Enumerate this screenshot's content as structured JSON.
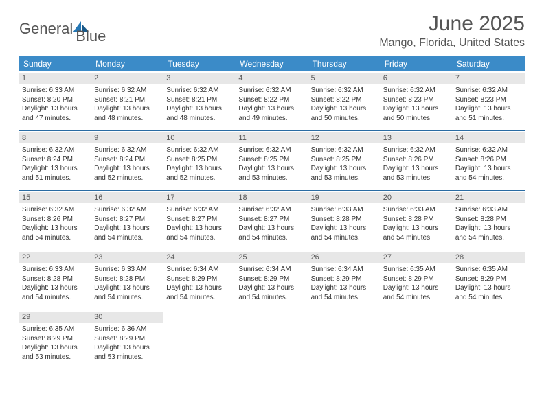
{
  "brand": {
    "word1": "General",
    "word2": "Blue"
  },
  "header": {
    "month_year": "June 2025",
    "location": "Mango, Florida, United States"
  },
  "colors": {
    "header_bg": "#3b8bc8",
    "header_text": "#ffffff",
    "daynum_bg": "#e7e7e7",
    "daynum_text": "#555555",
    "row_border": "#2a6ca3",
    "body_text": "#333333",
    "title_text": "#555555",
    "brand_blue": "#2577b5"
  },
  "calendar": {
    "days_of_week": [
      "Sunday",
      "Monday",
      "Tuesday",
      "Wednesday",
      "Thursday",
      "Friday",
      "Saturday"
    ],
    "days": [
      {
        "n": 1,
        "sunrise": "6:33 AM",
        "sunset": "8:20 PM",
        "daylight": "13 hours and 47 minutes."
      },
      {
        "n": 2,
        "sunrise": "6:32 AM",
        "sunset": "8:21 PM",
        "daylight": "13 hours and 48 minutes."
      },
      {
        "n": 3,
        "sunrise": "6:32 AM",
        "sunset": "8:21 PM",
        "daylight": "13 hours and 48 minutes."
      },
      {
        "n": 4,
        "sunrise": "6:32 AM",
        "sunset": "8:22 PM",
        "daylight": "13 hours and 49 minutes."
      },
      {
        "n": 5,
        "sunrise": "6:32 AM",
        "sunset": "8:22 PM",
        "daylight": "13 hours and 50 minutes."
      },
      {
        "n": 6,
        "sunrise": "6:32 AM",
        "sunset": "8:23 PM",
        "daylight": "13 hours and 50 minutes."
      },
      {
        "n": 7,
        "sunrise": "6:32 AM",
        "sunset": "8:23 PM",
        "daylight": "13 hours and 51 minutes."
      },
      {
        "n": 8,
        "sunrise": "6:32 AM",
        "sunset": "8:24 PM",
        "daylight": "13 hours and 51 minutes."
      },
      {
        "n": 9,
        "sunrise": "6:32 AM",
        "sunset": "8:24 PM",
        "daylight": "13 hours and 52 minutes."
      },
      {
        "n": 10,
        "sunrise": "6:32 AM",
        "sunset": "8:25 PM",
        "daylight": "13 hours and 52 minutes."
      },
      {
        "n": 11,
        "sunrise": "6:32 AM",
        "sunset": "8:25 PM",
        "daylight": "13 hours and 53 minutes."
      },
      {
        "n": 12,
        "sunrise": "6:32 AM",
        "sunset": "8:25 PM",
        "daylight": "13 hours and 53 minutes."
      },
      {
        "n": 13,
        "sunrise": "6:32 AM",
        "sunset": "8:26 PM",
        "daylight": "13 hours and 53 minutes."
      },
      {
        "n": 14,
        "sunrise": "6:32 AM",
        "sunset": "8:26 PM",
        "daylight": "13 hours and 54 minutes."
      },
      {
        "n": 15,
        "sunrise": "6:32 AM",
        "sunset": "8:26 PM",
        "daylight": "13 hours and 54 minutes."
      },
      {
        "n": 16,
        "sunrise": "6:32 AM",
        "sunset": "8:27 PM",
        "daylight": "13 hours and 54 minutes."
      },
      {
        "n": 17,
        "sunrise": "6:32 AM",
        "sunset": "8:27 PM",
        "daylight": "13 hours and 54 minutes."
      },
      {
        "n": 18,
        "sunrise": "6:32 AM",
        "sunset": "8:27 PM",
        "daylight": "13 hours and 54 minutes."
      },
      {
        "n": 19,
        "sunrise": "6:33 AM",
        "sunset": "8:28 PM",
        "daylight": "13 hours and 54 minutes."
      },
      {
        "n": 20,
        "sunrise": "6:33 AM",
        "sunset": "8:28 PM",
        "daylight": "13 hours and 54 minutes."
      },
      {
        "n": 21,
        "sunrise": "6:33 AM",
        "sunset": "8:28 PM",
        "daylight": "13 hours and 54 minutes."
      },
      {
        "n": 22,
        "sunrise": "6:33 AM",
        "sunset": "8:28 PM",
        "daylight": "13 hours and 54 minutes."
      },
      {
        "n": 23,
        "sunrise": "6:33 AM",
        "sunset": "8:28 PM",
        "daylight": "13 hours and 54 minutes."
      },
      {
        "n": 24,
        "sunrise": "6:34 AM",
        "sunset": "8:29 PM",
        "daylight": "13 hours and 54 minutes."
      },
      {
        "n": 25,
        "sunrise": "6:34 AM",
        "sunset": "8:29 PM",
        "daylight": "13 hours and 54 minutes."
      },
      {
        "n": 26,
        "sunrise": "6:34 AM",
        "sunset": "8:29 PM",
        "daylight": "13 hours and 54 minutes."
      },
      {
        "n": 27,
        "sunrise": "6:35 AM",
        "sunset": "8:29 PM",
        "daylight": "13 hours and 54 minutes."
      },
      {
        "n": 28,
        "sunrise": "6:35 AM",
        "sunset": "8:29 PM",
        "daylight": "13 hours and 54 minutes."
      },
      {
        "n": 29,
        "sunrise": "6:35 AM",
        "sunset": "8:29 PM",
        "daylight": "13 hours and 53 minutes."
      },
      {
        "n": 30,
        "sunrise": "6:36 AM",
        "sunset": "8:29 PM",
        "daylight": "13 hours and 53 minutes."
      }
    ],
    "labels": {
      "sunrise": "Sunrise:",
      "sunset": "Sunset:",
      "daylight": "Daylight:"
    }
  }
}
